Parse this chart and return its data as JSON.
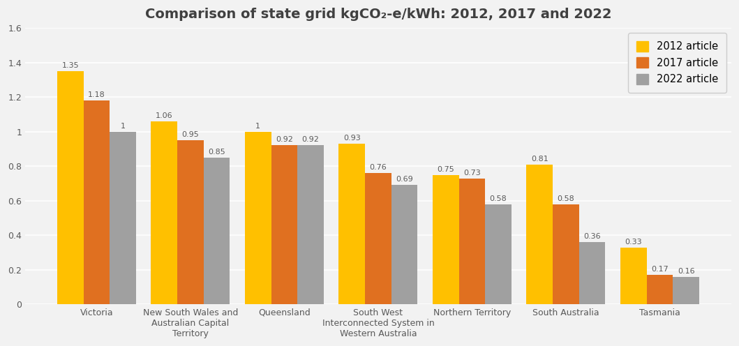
{
  "title": "Comparison of state grid kgCO₂-e/kWh: 2012, 2017 and 2022",
  "categories": [
    "Victoria",
    "New South Wales and\nAustralian Capital\nTerritory",
    "Queensland",
    "South West\nInterconnected System in\nWestern Australia",
    "Northern Territory",
    "South Australia",
    "Tasmania"
  ],
  "series": {
    "2012 article": [
      1.35,
      1.06,
      1.0,
      0.93,
      0.75,
      0.81,
      0.33
    ],
    "2017 article": [
      1.18,
      0.95,
      0.92,
      0.76,
      0.73,
      0.58,
      0.17
    ],
    "2022 article": [
      1.0,
      0.85,
      0.92,
      0.69,
      0.58,
      0.36,
      0.16
    ]
  },
  "colors": {
    "2012 article": "#FFC000",
    "2017 article": "#E07020",
    "2022 article": "#A0A0A0"
  },
  "ylim": [
    0,
    1.6
  ],
  "yticks": [
    0,
    0.2,
    0.4,
    0.6,
    0.8,
    1.0,
    1.2,
    1.4,
    1.6
  ],
  "bar_width": 0.28,
  "label_fontsize": 8.0,
  "title_fontsize": 14,
  "tick_fontsize": 9.0,
  "background_color": "#F2F2F2",
  "plot_bg_color": "#F2F2F2",
  "grid_color": "#FFFFFF",
  "title_color": "#404040",
  "tick_color": "#595959",
  "label_color": "#595959"
}
